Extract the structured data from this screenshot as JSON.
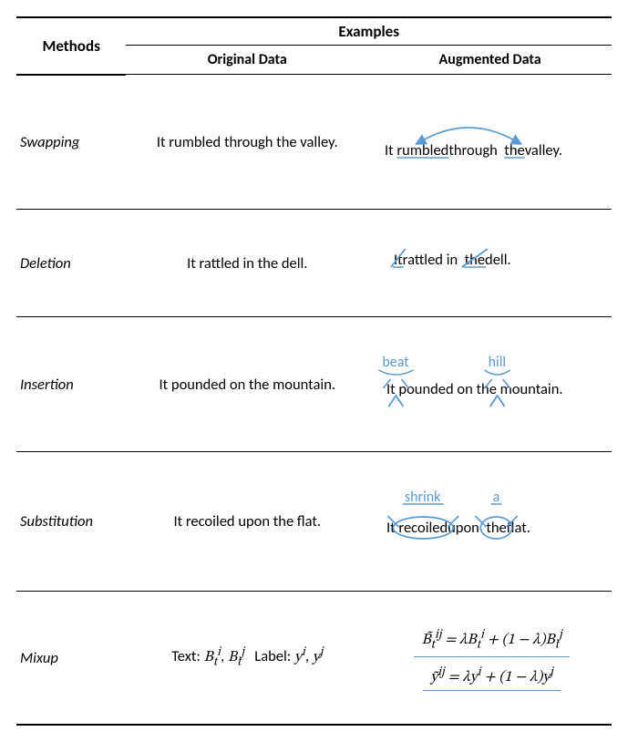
{
  "accent": "#5b9bd5",
  "text_color": "#000000",
  "bg_color": "#ffffff",
  "header": {
    "methods": "Methods",
    "examples": "Examples",
    "original": "Original Data",
    "augmented": "Augmented Data"
  },
  "rows": {
    "swapping": {
      "method": "Swapping",
      "original": "It rumbled through the valley.",
      "aug": {
        "tokens": [
          "It ",
          "rumbled",
          " through ",
          "the",
          " valley."
        ],
        "swap_underline_idx": [
          1,
          3
        ],
        "arrow_from_idx": 1,
        "arrow_to_idx": 3
      }
    },
    "deletion": {
      "method": "Deletion",
      "original": "It rattled in the dell.",
      "aug": {
        "tokens": [
          "It",
          " rattled in ",
          "the",
          " dell."
        ],
        "strike_idx": [
          0,
          2
        ]
      }
    },
    "insertion": {
      "method": "Insertion",
      "original": "It pounded on the mountain.",
      "aug": {
        "base_tokens": [
          "It ",
          "pounded on the ",
          "mountain."
        ],
        "inserts": [
          {
            "after_idx": 0,
            "word": "beat"
          },
          {
            "after_idx": 1,
            "word": "hill"
          }
        ]
      }
    },
    "substitution": {
      "method": "Substitution",
      "original": "It recoiled upon the flat.",
      "aug": {
        "tokens": [
          "It ",
          "recoiled",
          " upon ",
          "the",
          " flat."
        ],
        "subs": [
          {
            "target_idx": 1,
            "word": "shrink"
          },
          {
            "target_idx": 3,
            "word": "a"
          }
        ]
      }
    },
    "mixup": {
      "method": "Mixup",
      "original_html": "Text: <span class='math'>B<sub>t</sub><sup>i</sup></span>, <span class='math'>B<sub>t</sub><sup>j</sup></span>&nbsp;&nbsp;&nbsp;Label: <span class='math'>y<sup>i</sup></span>, <span class='math'>y<sup>j</sup></span>",
      "aug_line1": "<span class='math'>B̃<sub>t</sub><sup>ij</sup> = λB<sub>t</sub><sup>i</sup> + (1 − λ)B<sub>t</sub><sup>j</sup></span>",
      "aug_line2": "<span class='math'>ỹ<sup>ij</sup> = λy<sup>i</sup> + (1 − λ)y<sup>j</sup></span>"
    }
  }
}
